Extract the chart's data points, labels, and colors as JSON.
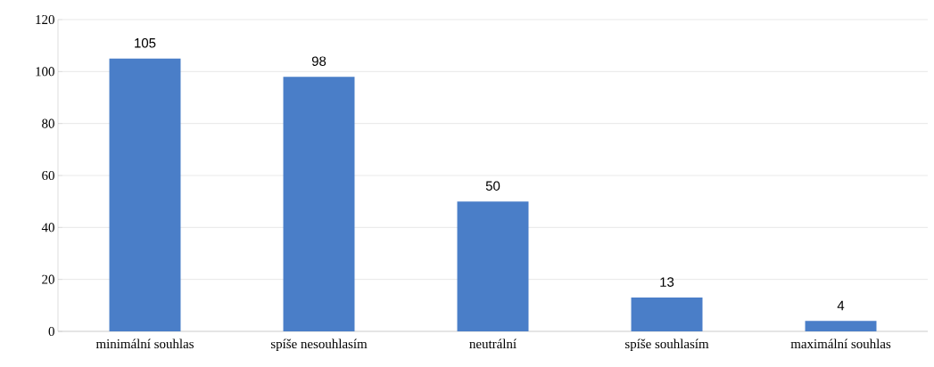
{
  "chart_data": {
    "type": "bar",
    "categories": [
      "minimální souhlas",
      "spíše nesouhlasím",
      "neutrální",
      "spíše souhlasím",
      "maximální souhlas"
    ],
    "values": [
      105,
      98,
      50,
      13,
      4
    ],
    "color": "#4a7ec8",
    "ylim": [
      0,
      120
    ],
    "yticks": [
      0,
      20,
      40,
      60,
      80,
      100,
      120
    ],
    "grid": "y",
    "data_labels": true
  }
}
